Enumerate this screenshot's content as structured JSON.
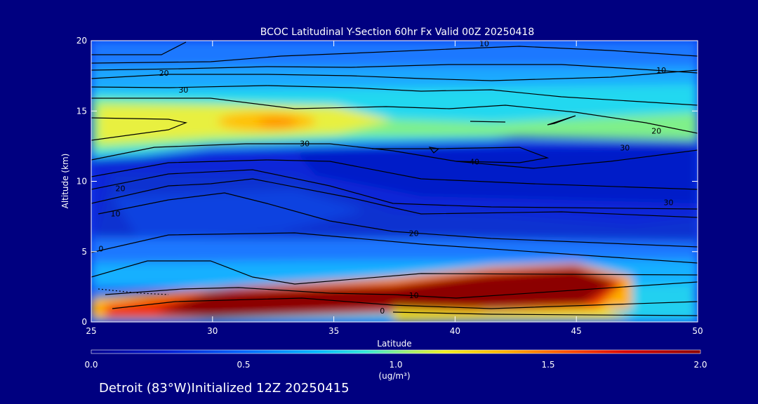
{
  "chart_data": {
    "type": "heatmap",
    "title": "BCOC Latitudinal Y-Section 60hr  Fx Valid 00Z 20250418",
    "xlabel": "Latitude",
    "ylabel": "Altitude (km)",
    "xlim": [
      25,
      50
    ],
    "ylim": [
      0,
      20
    ],
    "x_ticks": [
      "25",
      "30",
      "35",
      "40",
      "45",
      "50"
    ],
    "y_ticks": [
      "0",
      "5",
      "10",
      "15",
      "20"
    ],
    "colorbar": {
      "min": 0.0,
      "max": 2.0,
      "ticks": [
        "0.0",
        "0.5",
        "1.0",
        "1.5",
        "2.0"
      ],
      "unit_line1": "1.0",
      "unit_line2": "(ug/m³)"
    },
    "contour_labels": [
      {
        "text": "10",
        "x": 41.2,
        "y": 19.8
      },
      {
        "text": "10",
        "x": 48.5,
        "y": 17.9
      },
      {
        "text": "20",
        "x": 28.0,
        "y": 17.7
      },
      {
        "text": "30",
        "x": 28.8,
        "y": 16.5
      },
      {
        "text": "20",
        "x": 48.3,
        "y": 13.6
      },
      {
        "text": "30",
        "x": 47.0,
        "y": 12.4
      },
      {
        "text": "30",
        "x": 33.8,
        "y": 12.7
      },
      {
        "text": "40",
        "x": 40.8,
        "y": 11.4
      },
      {
        "text": "20",
        "x": 26.2,
        "y": 9.5
      },
      {
        "text": "30",
        "x": 48.8,
        "y": 8.5
      },
      {
        "text": "10",
        "x": 26.0,
        "y": 7.7
      },
      {
        "text": "20",
        "x": 38.3,
        "y": 6.3
      },
      {
        "text": "0",
        "x": 25.4,
        "y": 5.2
      },
      {
        "text": "10",
        "x": 38.3,
        "y": 1.9
      },
      {
        "text": "0",
        "x": 37.0,
        "y": 0.8
      }
    ]
  },
  "footer": "Detroit (83°W)Initialized 12Z 20250415"
}
